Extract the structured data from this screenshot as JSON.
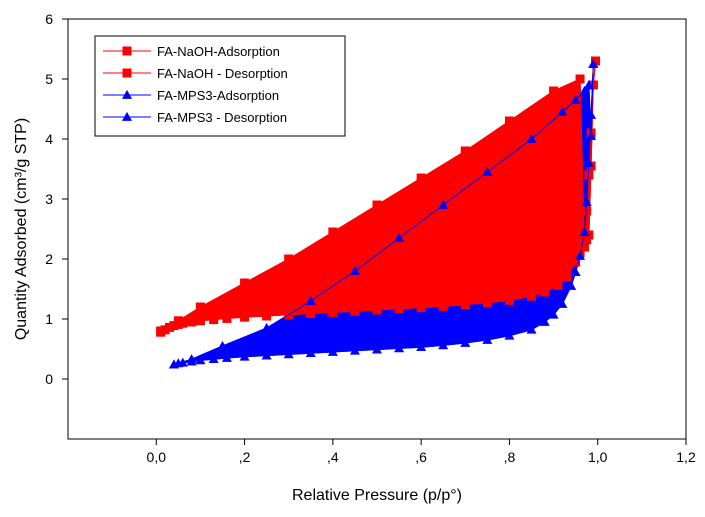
{
  "chart_data": {
    "type": "scatter",
    "xlabel": "Relative Pressure (p/p°)",
    "ylabel": "Quantity Adsorbed (cm³/g STP)",
    "xlim": [
      -0.2,
      1.2
    ],
    "ylim": [
      -1,
      6
    ],
    "x_ticks": [
      {
        "value": 0.0,
        "label": "0,0"
      },
      {
        "value": 0.2,
        "label": ",2"
      },
      {
        "value": 0.4,
        "label": ",4"
      },
      {
        "value": 0.6,
        "label": ",6"
      },
      {
        "value": 0.8,
        "label": ",8"
      },
      {
        "value": 1.0,
        "label": "1,0"
      },
      {
        "value": 1.2,
        "label": "1,2"
      }
    ],
    "y_ticks": [
      {
        "value": 0,
        "label": "0"
      },
      {
        "value": 1,
        "label": "1"
      },
      {
        "value": 2,
        "label": "2"
      },
      {
        "value": 3,
        "label": "3"
      },
      {
        "value": 4,
        "label": "4"
      },
      {
        "value": 5,
        "label": "5"
      },
      {
        "value": 6,
        "label": "6"
      }
    ],
    "grid": false,
    "legend_position": "top-left",
    "series": [
      {
        "name": "FA-NaOH-Adsorption",
        "color": "#ff0000",
        "marker": "square",
        "x": [
          0.01,
          0.02,
          0.03,
          0.04,
          0.05,
          0.06,
          0.08,
          0.1,
          0.13,
          0.16,
          0.2,
          0.25,
          0.3,
          0.35,
          0.4,
          0.45,
          0.5,
          0.55,
          0.6,
          0.65,
          0.7,
          0.75,
          0.8,
          0.85,
          0.88,
          0.91,
          0.93,
          0.95,
          0.96,
          0.97,
          0.975,
          0.98,
          0.985,
          0.99,
          0.995
        ],
        "y": [
          0.78,
          0.82,
          0.86,
          0.89,
          0.91,
          0.93,
          0.95,
          0.97,
          0.99,
          1.01,
          1.03,
          1.05,
          1.07,
          1.09,
          1.11,
          1.13,
          1.15,
          1.17,
          1.19,
          1.21,
          1.24,
          1.27,
          1.31,
          1.38,
          1.45,
          1.56,
          1.7,
          1.95,
          2.1,
          2.38,
          2.8,
          3.4,
          4.1,
          4.9,
          5.3
        ]
      },
      {
        "name": "FA-NaOH - Desorption",
        "color": "#ff0000",
        "marker": "square",
        "x": [
          0.995,
          0.99,
          0.985,
          0.98,
          0.975,
          0.97,
          0.96,
          0.9,
          0.8,
          0.7,
          0.6,
          0.5,
          0.4,
          0.3,
          0.2,
          0.1,
          0.05,
          0.01
        ],
        "y": [
          5.3,
          4.9,
          3.55,
          2.4,
          2.32,
          2.2,
          5.0,
          4.8,
          4.3,
          3.8,
          3.35,
          2.9,
          2.45,
          2.0,
          1.6,
          1.2,
          0.97,
          0.8
        ]
      },
      {
        "name": "FA-MPS3-Adsorption",
        "color": "#0000ff",
        "marker": "triangle",
        "x": [
          0.04,
          0.05,
          0.06,
          0.08,
          0.1,
          0.13,
          0.16,
          0.2,
          0.25,
          0.3,
          0.35,
          0.4,
          0.45,
          0.5,
          0.55,
          0.6,
          0.65,
          0.7,
          0.75,
          0.8,
          0.85,
          0.88,
          0.9,
          0.92,
          0.94,
          0.95,
          0.96,
          0.97,
          0.975,
          0.98,
          0.985,
          0.99
        ],
        "y": [
          0.24,
          0.26,
          0.27,
          0.29,
          0.31,
          0.33,
          0.35,
          0.37,
          0.39,
          0.41,
          0.43,
          0.45,
          0.47,
          0.49,
          0.51,
          0.53,
          0.56,
          0.6,
          0.65,
          0.72,
          0.82,
          0.95,
          1.07,
          1.25,
          1.55,
          1.78,
          2.05,
          2.45,
          2.95,
          3.6,
          4.4,
          5.25
        ]
      },
      {
        "name": "FA-MPS3 - Desorption",
        "color": "#0000ff",
        "marker": "triangle",
        "x": [
          0.99,
          0.985,
          0.98,
          0.97,
          0.95,
          0.92,
          0.85,
          0.75,
          0.65,
          0.55,
          0.45,
          0.35,
          0.25,
          0.15,
          0.08,
          0.04
        ],
        "y": [
          5.25,
          4.05,
          4.9,
          4.8,
          4.65,
          4.45,
          4.0,
          3.45,
          2.9,
          2.35,
          1.8,
          1.3,
          0.85,
          0.55,
          0.33,
          0.24
        ]
      }
    ]
  }
}
